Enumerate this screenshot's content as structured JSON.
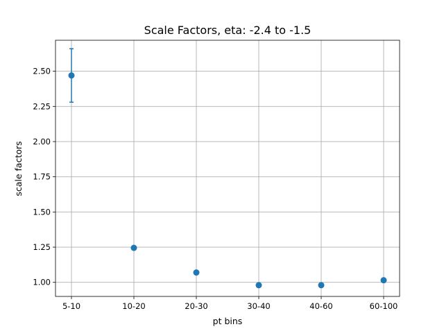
{
  "chart_data": {
    "type": "scatter",
    "title": "Scale Factors, eta: -2.4 to -1.5",
    "xlabel": "pt bins",
    "ylabel": "scale factors",
    "categories": [
      "5-10",
      "10-20",
      "20-30",
      "30-40",
      "40-60",
      "60-100"
    ],
    "series": [
      {
        "values": [
          2.47,
          1.245,
          1.07,
          0.98,
          0.98,
          1.015
        ],
        "errors": [
          0.19,
          0.0,
          0.0,
          0.0,
          0.0,
          0.0
        ],
        "color": "#1f77b4"
      }
    ],
    "ylim": [
      0.9,
      2.72
    ],
    "yticks": [
      1.0,
      1.25,
      1.5,
      1.75,
      2.0,
      2.25,
      2.5
    ],
    "ytick_labels": [
      "1.00",
      "1.25",
      "1.50",
      "1.75",
      "2.00",
      "2.25",
      "2.50"
    ],
    "grid": true,
    "legend": "none"
  }
}
